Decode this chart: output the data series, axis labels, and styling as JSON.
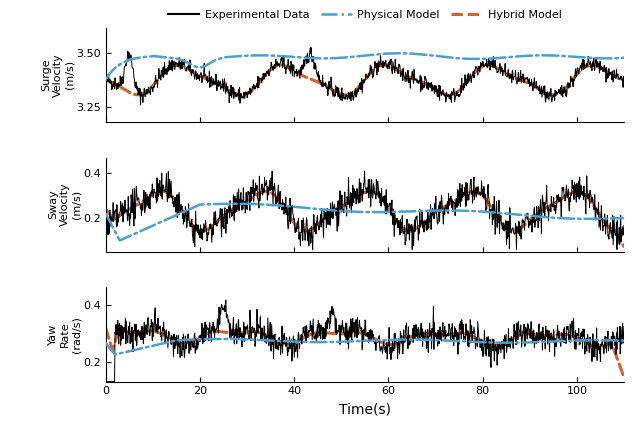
{
  "ylabel1": "Surge\nVelocity\n(m/s)",
  "ylabel2": "Sway\nVelocity\n(m/s)",
  "ylabel3": "Yaw\nRate\n(rad/s)",
  "xlabel": "Time(s)",
  "legend_labels": [
    "Experimental Data",
    "Physical Model",
    "Hybrid Model"
  ],
  "line_colors": [
    "#000000",
    "#4a9fd4",
    "#d4622a"
  ],
  "surge_ylim": [
    3.18,
    3.62
  ],
  "surge_yticks": [
    3.25,
    3.5
  ],
  "sway_ylim": [
    0.05,
    0.47
  ],
  "sway_yticks": [
    0.2,
    0.4
  ],
  "yaw_ylim": [
    0.13,
    0.46
  ],
  "yaw_yticks": [
    0.2,
    0.4
  ],
  "xticks": [
    0,
    20,
    40,
    60,
    80,
    100
  ],
  "figsize": [
    6.4,
    4.24
  ],
  "dpi": 100
}
